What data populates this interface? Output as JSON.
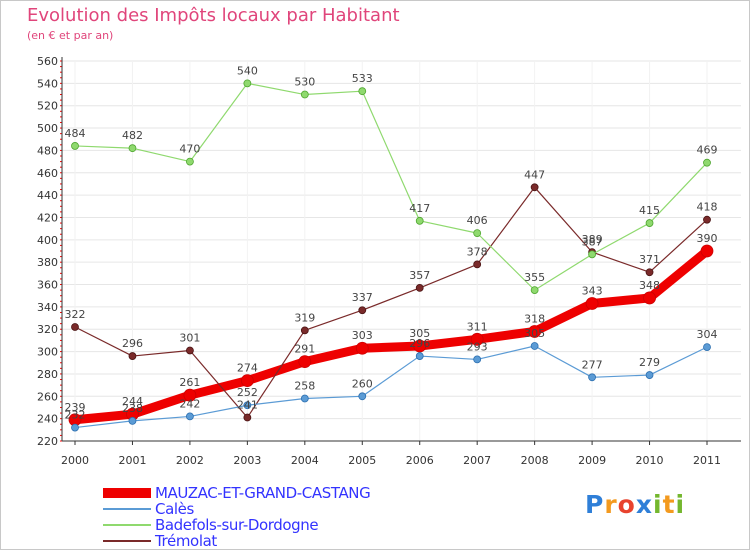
{
  "header": {
    "title": "Evolution des Impôts locaux par Habitant",
    "subtitle": "(en € et par an)"
  },
  "brand": {
    "letters": [
      "P",
      "r",
      "o",
      "x",
      "i",
      "t",
      "i"
    ],
    "colors": [
      "#2f7fd8",
      "#f39a1f",
      "#e8432e",
      "#2f7fd8",
      "#74b72e",
      "#f39a1f",
      "#74b72e"
    ]
  },
  "chart_data": {
    "type": "line",
    "title": "Evolution des Impôts locaux par Habitant",
    "subtitle": "(en € et par an)",
    "xlabel": "",
    "ylabel": "",
    "x": [
      "2000",
      "2001",
      "2002",
      "2003",
      "2004",
      "2005",
      "2006",
      "2007",
      "2008",
      "2009",
      "2010",
      "2011"
    ],
    "ylim": [
      220,
      560
    ],
    "yticks": [
      220,
      240,
      260,
      280,
      300,
      320,
      340,
      360,
      380,
      400,
      420,
      440,
      460,
      480,
      500,
      520,
      540,
      560
    ],
    "grid": "horizontal",
    "legend_position": "bottom-left",
    "series": [
      {
        "name": "MAUZAC-ET-GRAND-CASTANG",
        "color": "#ee0000",
        "values": [
          239,
          244,
          261,
          274,
          291,
          303,
          305,
          311,
          318,
          343,
          348,
          390
        ]
      },
      {
        "name": "Calès",
        "color": "#5b9bd5",
        "values": [
          232,
          238,
          242,
          252,
          258,
          260,
          296,
          293,
          305,
          277,
          279,
          304
        ]
      },
      {
        "name": "Badefols-sur-Dordogne",
        "color": "#8fd96e",
        "values": [
          484,
          482,
          470,
          540,
          530,
          533,
          417,
          406,
          355,
          387,
          415,
          469
        ]
      },
      {
        "name": "Trémolat",
        "color": "#7a2a2a",
        "values": [
          322,
          296,
          301,
          241,
          319,
          337,
          357,
          378,
          447,
          389,
          371,
          418
        ]
      }
    ]
  }
}
